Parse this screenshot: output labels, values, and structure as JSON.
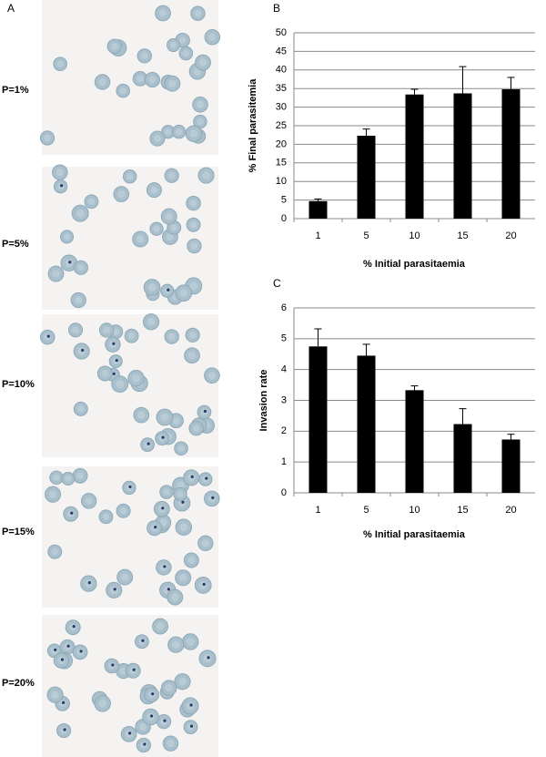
{
  "panel_labels": [
    "A",
    "B",
    "C"
  ],
  "micrographs": [
    {
      "label": "P=1%"
    },
    {
      "label": "P=5%"
    },
    {
      "label": "P=10%"
    },
    {
      "label": "P=15%"
    },
    {
      "label": "P=20%"
    }
  ],
  "chart_data": [
    {
      "type": "bar",
      "categories": [
        "1",
        "5",
        "10",
        "15",
        "20"
      ],
      "values": [
        4.7,
        22.3,
        33.4,
        33.7,
        34.8
      ],
      "errors": [
        0.6,
        1.8,
        1.4,
        7.2,
        3.2
      ],
      "color": "#000000",
      "ylim": [
        0,
        50
      ],
      "yticks": [
        0,
        5,
        10,
        15,
        20,
        25,
        30,
        35,
        40,
        45,
        50
      ],
      "grid": true,
      "xlabel": "% Initial parasitaemia",
      "ylabel": "% Final parasitemia"
    },
    {
      "type": "bar",
      "categories": [
        "1",
        "5",
        "10",
        "15",
        "20"
      ],
      "values": [
        4.75,
        4.45,
        3.33,
        2.23,
        1.73
      ],
      "errors": [
        0.57,
        0.37,
        0.14,
        0.5,
        0.17
      ],
      "color": "#000000",
      "ylim": [
        0,
        6
      ],
      "yticks": [
        0,
        1,
        2,
        3,
        4,
        5,
        6
      ],
      "grid": true,
      "xlabel": "% Initial parasitaemia",
      "ylabel": "Invasion rate"
    }
  ]
}
